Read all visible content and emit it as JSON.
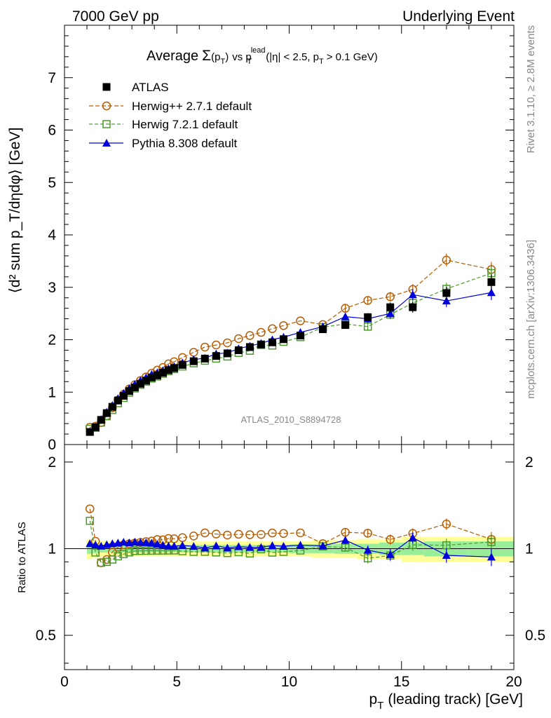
{
  "header": {
    "left": "7000 GeV pp",
    "right": "Underlying Event"
  },
  "side_labels": {
    "rivet": "Rivet 3.1.10, ≥ 2.8M events",
    "mcplots": "mcplots.cern.ch [arXiv:1306.3436]"
  },
  "watermark": "ATLAS_2010_S8894728",
  "chart_data": {
    "type": "scatter",
    "title": {
      "prefix": "Average",
      "sigma": "Σ",
      "pt": "(p",
      "pt_sub": "T",
      "pt_close": ")",
      "vs": "vs p",
      "lead_sup": "lead",
      "lead_sub": "T",
      "cuts": "(|η| < 2.5, p",
      "cuts_sub": "T",
      "cuts_end": "> 0.1 GeV)"
    },
    "xlabel": {
      "p": "p",
      "sub": "T",
      "rest": "(leading track) [GeV]"
    },
    "ylabel_main": "⟨d² sum p_T/dηdφ⟩ [GeV]",
    "ylabel_ratio": "Ratio to ATLAS",
    "xlim": [
      0,
      20
    ],
    "ylim_main": [
      0,
      8
    ],
    "ylim_ratio": [
      0.38,
      2.3
    ],
    "x_ticks": [
      "0",
      "5",
      "10",
      "15",
      "20"
    ],
    "y_ticks_main": [
      "0",
      "1",
      "2",
      "3",
      "4",
      "5",
      "6",
      "7"
    ],
    "y_ticks_ratio": [
      "0.5",
      "1",
      "2"
    ],
    "legend_position": "top-left",
    "series": [
      {
        "name": "ATLAS",
        "color": "#000000",
        "marker": "filled-square",
        "x": [
          1.13,
          1.38,
          1.63,
          1.88,
          2.13,
          2.38,
          2.63,
          2.88,
          3.13,
          3.38,
          3.63,
          3.88,
          4.13,
          4.38,
          4.63,
          4.88,
          5.25,
          5.75,
          6.25,
          6.75,
          7.25,
          7.75,
          8.25,
          8.75,
          9.25,
          9.75,
          10.5,
          11.5,
          12.5,
          13.5,
          14.5,
          15.5,
          17,
          19
        ],
        "y": [
          0.24,
          0.33,
          0.47,
          0.6,
          0.72,
          0.84,
          0.93,
          1.02,
          1.09,
          1.16,
          1.22,
          1.28,
          1.32,
          1.37,
          1.42,
          1.46,
          1.52,
          1.59,
          1.64,
          1.69,
          1.74,
          1.8,
          1.86,
          1.91,
          1.95,
          2.01,
          2.08,
          2.2,
          2.28,
          2.43,
          2.62,
          2.62,
          2.89,
          3.1
        ]
      },
      {
        "name": "Herwig++ 2.7.1 default",
        "color": "#b85c00",
        "marker": "open-circle",
        "x": [
          1.13,
          1.38,
          1.63,
          1.88,
          2.13,
          2.38,
          2.63,
          2.88,
          3.13,
          3.38,
          3.63,
          3.88,
          4.13,
          4.38,
          4.63,
          4.88,
          5.25,
          5.75,
          6.25,
          6.75,
          7.25,
          7.75,
          8.25,
          8.75,
          9.25,
          9.75,
          10.5,
          11.5,
          12.5,
          13.5,
          14.5,
          15.5,
          17,
          19
        ],
        "y": [
          0.33,
          0.35,
          0.42,
          0.55,
          0.7,
          0.85,
          0.96,
          1.06,
          1.14,
          1.22,
          1.29,
          1.36,
          1.42,
          1.47,
          1.54,
          1.58,
          1.66,
          1.76,
          1.86,
          1.9,
          1.94,
          2.02,
          2.08,
          2.14,
          2.21,
          2.27,
          2.36,
          2.29,
          2.6,
          2.75,
          2.82,
          2.96,
          3.52,
          3.34
        ]
      },
      {
        "name": "Herwig 7.2.1 default",
        "color": "#4a9a2a",
        "marker": "open-square",
        "x": [
          1.13,
          1.38,
          1.63,
          1.88,
          2.13,
          2.38,
          2.63,
          2.88,
          3.13,
          3.38,
          3.63,
          3.88,
          4.13,
          4.38,
          4.63,
          4.88,
          5.25,
          5.75,
          6.25,
          6.75,
          7.25,
          7.75,
          8.25,
          8.75,
          9.25,
          9.75,
          10.5,
          11.5,
          12.5,
          13.5,
          14.5,
          15.5,
          17,
          19
        ],
        "y": [
          0.3,
          0.32,
          0.42,
          0.54,
          0.66,
          0.79,
          0.89,
          0.99,
          1.07,
          1.14,
          1.2,
          1.26,
          1.3,
          1.35,
          1.4,
          1.44,
          1.49,
          1.55,
          1.6,
          1.64,
          1.68,
          1.75,
          1.79,
          1.9,
          1.89,
          1.96,
          2.05,
          2.24,
          2.3,
          2.25,
          2.48,
          2.7,
          2.97,
          3.27
        ]
      },
      {
        "name": "Pythia 8.308 default",
        "color": "#0000dd",
        "marker": "filled-triangle",
        "x": [
          1.13,
          1.38,
          1.63,
          1.88,
          2.13,
          2.38,
          2.63,
          2.88,
          3.13,
          3.38,
          3.63,
          3.88,
          4.13,
          4.38,
          4.63,
          4.88,
          5.25,
          5.75,
          6.25,
          6.75,
          7.25,
          7.75,
          8.25,
          8.75,
          9.25,
          9.75,
          10.5,
          11.5,
          12.5,
          13.5,
          14.5,
          15.5,
          17,
          19
        ],
        "y": [
          0.25,
          0.34,
          0.48,
          0.62,
          0.75,
          0.88,
          0.98,
          1.07,
          1.15,
          1.22,
          1.28,
          1.34,
          1.37,
          1.41,
          1.45,
          1.49,
          1.56,
          1.62,
          1.65,
          1.73,
          1.75,
          1.83,
          1.88,
          1.93,
          2.0,
          2.05,
          2.14,
          2.25,
          2.44,
          2.4,
          2.5,
          2.86,
          2.74,
          2.9
        ]
      }
    ],
    "ratio_band": {
      "x_edges": [
        1,
        1.25,
        1.5,
        1.75,
        2,
        2.25,
        2.5,
        2.75,
        3,
        3.25,
        3.5,
        3.75,
        4,
        4.25,
        4.5,
        4.75,
        5,
        5.5,
        6,
        6.5,
        7,
        7.5,
        8,
        8.5,
        9,
        9.5,
        10,
        11,
        12,
        13,
        14,
        15,
        16,
        18,
        20
      ],
      "stat": [
        0.04,
        0.035,
        0.03,
        0.03,
        0.03,
        0.03,
        0.03,
        0.03,
        0.03,
        0.03,
        0.03,
        0.03,
        0.03,
        0.03,
        0.03,
        0.03,
        0.03,
        0.03,
        0.03,
        0.03,
        0.03,
        0.03,
        0.03,
        0.03,
        0.03,
        0.03,
        0.035,
        0.035,
        0.04,
        0.04,
        0.05,
        0.05,
        0.06,
        0.06
      ],
      "total": [
        0.08,
        0.07,
        0.065,
        0.06,
        0.06,
        0.06,
        0.06,
        0.06,
        0.06,
        0.06,
        0.06,
        0.06,
        0.06,
        0.06,
        0.06,
        0.06,
        0.06,
        0.06,
        0.06,
        0.06,
        0.06,
        0.06,
        0.06,
        0.06,
        0.06,
        0.06,
        0.06,
        0.07,
        0.07,
        0.08,
        0.08,
        0.1,
        0.1,
        0.1
      ]
    }
  }
}
